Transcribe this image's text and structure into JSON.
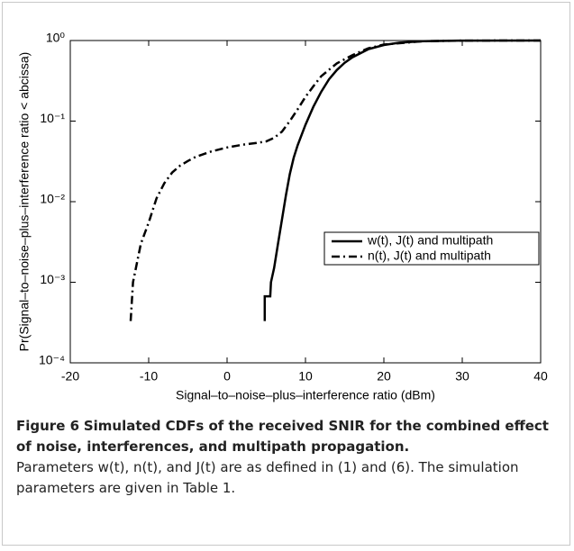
{
  "chart_data": {
    "type": "line",
    "xlabel": "Signal–to–noise–plus–interference ratio (dBm)",
    "ylabel": "Pr(Signal–to–noise–plus–interference ratio < abcissa)",
    "xlim": [
      -20,
      40
    ],
    "xticks": [
      -20,
      -10,
      0,
      10,
      20,
      30,
      40
    ],
    "ylim": [
      0.0001,
      1
    ],
    "ylog": true,
    "yticks": [
      {
        "value": 0.0001,
        "label": "10⁻⁴"
      },
      {
        "value": 0.001,
        "label": "10⁻³"
      },
      {
        "value": 0.01,
        "label": "10⁻²"
      },
      {
        "value": 0.1,
        "label": "10⁻¹"
      },
      {
        "value": 1,
        "label": "10⁰"
      }
    ],
    "legend": "east",
    "series": [
      {
        "name": "w(t), J(t) and multipath",
        "color": "#000000",
        "linestyle": "solid",
        "x": [
          4.8,
          4.8,
          5.5,
          5.6,
          6,
          6.5,
          7,
          7.5,
          8,
          8.5,
          9,
          10,
          11,
          12,
          13,
          14,
          15,
          16,
          18,
          20,
          22,
          25,
          30,
          40
        ],
        "values": [
          0.00033,
          0.00067,
          0.00067,
          0.001,
          0.0015,
          0.003,
          0.006,
          0.012,
          0.022,
          0.035,
          0.05,
          0.09,
          0.15,
          0.23,
          0.33,
          0.43,
          0.53,
          0.62,
          0.78,
          0.88,
          0.94,
          0.98,
          0.997,
          1
        ]
      },
      {
        "name": "n(t), J(t) and multipath",
        "color": "#000000",
        "linestyle": "dashdot",
        "x": [
          -12.3,
          -12,
          -11,
          -10,
          -9,
          -8,
          -7,
          -6,
          -5,
          -4,
          -2,
          0,
          2,
          4,
          5,
          6,
          7,
          8,
          9,
          10,
          11,
          12,
          14,
          16,
          18,
          20,
          25,
          30,
          40
        ],
        "values": [
          0.00033,
          0.001,
          0.003,
          0.0055,
          0.011,
          0.017,
          0.023,
          0.028,
          0.032,
          0.036,
          0.042,
          0.047,
          0.051,
          0.054,
          0.056,
          0.062,
          0.074,
          0.1,
          0.14,
          0.2,
          0.27,
          0.36,
          0.52,
          0.66,
          0.8,
          0.89,
          0.98,
          0.997,
          1
        ]
      }
    ]
  },
  "caption": {
    "label": "Figure 6",
    "title": "Simulated CDFs of the received SNIR for the combined effect of noise, interferences, and multipath propagation.",
    "text": "Parameters w(t), n(t), and J(t) are as defined in (1) and (6). The simulation parameters are given in Table 1."
  }
}
